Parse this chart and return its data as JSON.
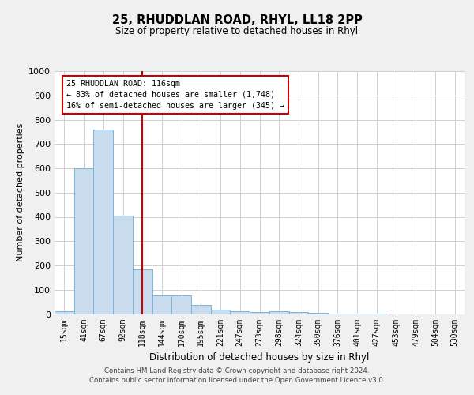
{
  "title": "25, RHUDDLAN ROAD, RHYL, LL18 2PP",
  "subtitle": "Size of property relative to detached houses in Rhyl",
  "xlabel": "Distribution of detached houses by size in Rhyl",
  "ylabel": "Number of detached properties",
  "categories": [
    "15sqm",
    "41sqm",
    "67sqm",
    "92sqm",
    "118sqm",
    "144sqm",
    "170sqm",
    "195sqm",
    "221sqm",
    "247sqm",
    "273sqm",
    "298sqm",
    "324sqm",
    "350sqm",
    "376sqm",
    "401sqm",
    "427sqm",
    "453sqm",
    "479sqm",
    "504sqm",
    "530sqm"
  ],
  "values": [
    13,
    600,
    760,
    405,
    185,
    75,
    75,
    38,
    18,
    13,
    8,
    13,
    8,
    5,
    2,
    1,
    1,
    0,
    0,
    0,
    0
  ],
  "bar_color": "#c8dcee",
  "bar_edge_color": "#7ab5d8",
  "vline_x": 4,
  "vline_color": "#cc0000",
  "annotation_box_text": "25 RHUDDLAN ROAD: 116sqm\n← 83% of detached houses are smaller (1,748)\n16% of semi-detached houses are larger (345) →",
  "annotation_box_color": "#cc0000",
  "annotation_box_fill": "#ffffff",
  "ylim": [
    0,
    1000
  ],
  "yticks": [
    0,
    100,
    200,
    300,
    400,
    500,
    600,
    700,
    800,
    900,
    1000
  ],
  "grid_color": "#d0d0d0",
  "footer_line1": "Contains HM Land Registry data © Crown copyright and database right 2024.",
  "footer_line2": "Contains public sector information licensed under the Open Government Licence v3.0.",
  "bg_color": "#f0f0f0",
  "plot_bg_color": "#ffffff"
}
